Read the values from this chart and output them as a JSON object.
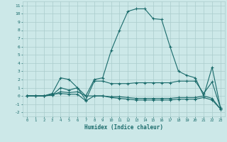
{
  "xlabel": "Humidex (Indice chaleur)",
  "background_color": "#cce8e8",
  "grid_color": "#aacccc",
  "line_color": "#1a6b6b",
  "xlim": [
    -0.5,
    23.5
  ],
  "ylim": [
    -2.5,
    11.5
  ],
  "xtick_vals": [
    0,
    1,
    2,
    3,
    4,
    5,
    6,
    7,
    8,
    9,
    10,
    11,
    12,
    13,
    14,
    15,
    16,
    17,
    18,
    19,
    20,
    21,
    22,
    23
  ],
  "ytick_vals": [
    -2,
    -1,
    0,
    1,
    2,
    3,
    4,
    5,
    6,
    7,
    8,
    9,
    10,
    11
  ],
  "line1_x": [
    0,
    1,
    2,
    3,
    4,
    5,
    6,
    7,
    8,
    9,
    10,
    11,
    12,
    13,
    14,
    15,
    16,
    17,
    18,
    19,
    20,
    21,
    22,
    23
  ],
  "line1_y": [
    0,
    0,
    0,
    0.3,
    2.2,
    2.0,
    1.0,
    0.0,
    2.0,
    2.2,
    5.5,
    8.0,
    10.3,
    10.6,
    10.6,
    9.4,
    9.3,
    6.0,
    3.0,
    2.5,
    2.2,
    0.0,
    3.5,
    -1.5
  ],
  "line2_x": [
    0,
    1,
    2,
    3,
    4,
    5,
    6,
    7,
    8,
    9,
    10,
    11,
    12,
    13,
    14,
    15,
    16,
    17,
    18,
    19,
    20,
    21,
    22,
    23
  ],
  "line2_y": [
    0,
    0,
    0,
    0.1,
    1.0,
    0.7,
    1.0,
    -0.5,
    1.8,
    1.8,
    1.5,
    1.5,
    1.5,
    1.6,
    1.6,
    1.6,
    1.6,
    1.6,
    1.8,
    1.8,
    1.8,
    0.3,
    1.7,
    -1.5
  ],
  "line3_x": [
    0,
    1,
    2,
    3,
    4,
    5,
    6,
    7,
    8,
    9,
    10,
    11,
    12,
    13,
    14,
    15,
    16,
    17,
    18,
    19,
    20,
    21,
    22,
    23
  ],
  "line3_y": [
    0,
    0,
    0,
    0.2,
    0.3,
    0.2,
    0.2,
    -0.6,
    0,
    0,
    -0.2,
    -0.3,
    -0.4,
    -0.5,
    -0.5,
    -0.5,
    -0.5,
    -0.5,
    -0.4,
    -0.4,
    -0.4,
    -0.2,
    -0.5,
    -1.6
  ],
  "line4_x": [
    0,
    1,
    2,
    3,
    4,
    5,
    6,
    7,
    8,
    9,
    10,
    11,
    12,
    13,
    14,
    15,
    16,
    17,
    18,
    19,
    20,
    21,
    22,
    23
  ],
  "line4_y": [
    0,
    0,
    0,
    0.1,
    0.5,
    0.4,
    0.5,
    0,
    0,
    0,
    -0.1,
    -0.1,
    -0.2,
    -0.3,
    -0.3,
    -0.3,
    -0.3,
    -0.3,
    -0.2,
    -0.2,
    -0.2,
    0.0,
    -0.3,
    -1.6
  ]
}
